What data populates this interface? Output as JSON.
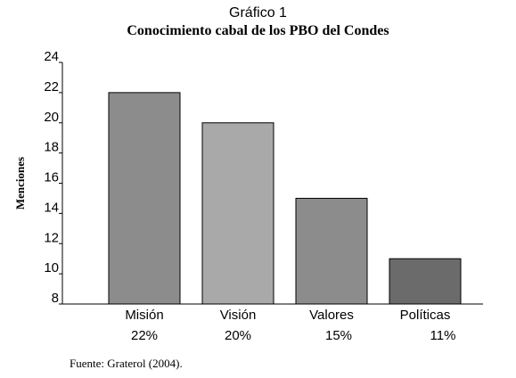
{
  "figure_label": "Gráfico 1",
  "source": "Fuente: Graterol (2004).",
  "chart_data": {
    "type": "bar",
    "title": "Conocimiento cabal de los PBO del Condes",
    "xlabel": "",
    "ylabel": "Menciones",
    "categories": [
      "Misión",
      "Visión",
      "Valores",
      "Políticas"
    ],
    "values": [
      22,
      20,
      15,
      11
    ],
    "percent_labels": [
      "22%",
      "20%",
      "15%",
      "11%"
    ],
    "ylim": [
      8,
      24
    ],
    "yticks": [
      8,
      10,
      12,
      14,
      16,
      18,
      20,
      22,
      24
    ],
    "bar_colors": [
      "#8c8c8c",
      "#a9a9a9",
      "#8c8c8c",
      "#6b6b6b"
    ],
    "grid": false,
    "legend": "none"
  }
}
